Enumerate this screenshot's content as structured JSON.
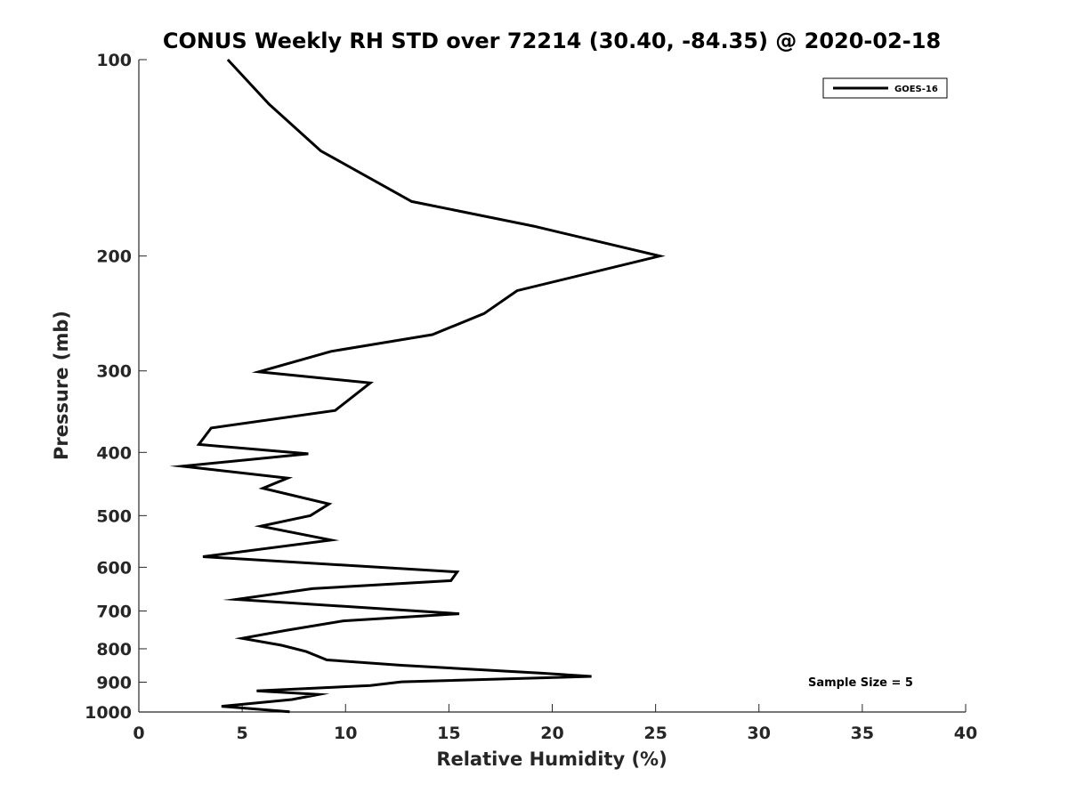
{
  "chart_data": {
    "type": "line",
    "title": "CONUS Weekly RH STD over 72214 (30.40, -84.35) @ 2020-02-18",
    "xlabel": "Relative Humidity (%)",
    "ylabel": "Pressure (mb)",
    "xlim": [
      0,
      40
    ],
    "ylim": [
      100,
      1000
    ],
    "y_scale": "log",
    "y_direction": "reversed",
    "xticks": [
      0,
      5,
      10,
      15,
      20,
      25,
      30,
      35,
      40
    ],
    "yticks": [
      100,
      200,
      300,
      400,
      500,
      600,
      700,
      800,
      900,
      1000
    ],
    "grid": false,
    "legend_position": "top-right",
    "annotation": "Sample Size = 5",
    "series": [
      {
        "name": "GOES-16",
        "color": "#000000",
        "x": [
          4.3,
          6.3,
          8.8,
          13.2,
          19.1,
          25.2,
          18.3,
          16.7,
          14.2,
          9.3,
          5.8,
          11.2,
          9.5,
          3.5,
          2.9,
          8.2,
          2.1,
          7.2,
          6.0,
          9.2,
          8.3,
          5.9,
          9.3,
          3.1,
          15.4,
          15.1,
          8.4,
          4.7,
          15.5,
          9.9,
          7.1,
          5.0,
          6.9,
          8.1,
          9.1,
          12.7,
          19.5,
          21.9,
          12.7,
          11.2,
          5.7,
          8.7,
          7.4,
          4.0,
          7.3
        ],
        "y": [
          100,
          117,
          138,
          165,
          180,
          200,
          226,
          245,
          264,
          280,
          301,
          313,
          345,
          367,
          389,
          402,
          420,
          438,
          454,
          480,
          500,
          519,
          545,
          578,
          610,
          629,
          647,
          672,
          707,
          725,
          750,
          771,
          790,
          808,
          832,
          848,
          872,
          882,
          899,
          911,
          928,
          940,
          957,
          980,
          999
        ]
      }
    ]
  }
}
